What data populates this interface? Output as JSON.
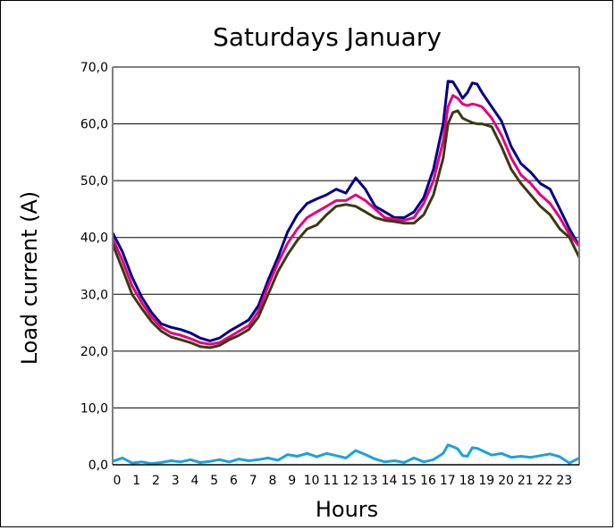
{
  "chart_data": {
    "type": "line",
    "title": "Saturdays January",
    "xlabel": "Hours",
    "ylabel": "Load current  (A)",
    "xlim": [
      0,
      24
    ],
    "ylim": [
      0,
      70
    ],
    "y_ticks": [
      "0,0",
      "10,0",
      "20,0",
      "30,0",
      "40,0",
      "50,0",
      "60,0",
      "70,0"
    ],
    "x_ticks": [
      "0",
      "1",
      "2",
      "3",
      "4",
      "5",
      "6",
      "7",
      "8",
      "9",
      "10",
      "11",
      "12",
      "13",
      "14",
      "15",
      "16",
      "17",
      "18",
      "19",
      "20",
      "21",
      "22",
      "23"
    ],
    "grid": "horizontal",
    "legend": "none",
    "colors": {
      "navy": "#00008B",
      "magenta": "#E6007E",
      "olive": "#3A3A10",
      "cyan": "#1BA1E2",
      "grid": "#000000",
      "plot_border": "#808080"
    },
    "series": [
      {
        "color": "#00008B",
        "x": [
          0,
          0.5,
          1,
          1.5,
          2,
          2.5,
          3,
          3.5,
          4,
          4.5,
          5,
          5.5,
          6,
          6.5,
          7,
          7.5,
          8,
          8.5,
          9,
          9.5,
          10,
          10.5,
          11,
          11.5,
          12,
          12.5,
          13,
          13.5,
          14,
          14.5,
          15,
          15.5,
          16,
          16.5,
          17,
          17.25,
          17.5,
          17.75,
          18,
          18.25,
          18.5,
          18.75,
          19,
          19.5,
          20,
          20.5,
          21,
          21.5,
          22,
          22.5,
          23,
          23.5,
          24
        ],
        "values": [
          40.8,
          37.5,
          33.0,
          29.5,
          26.8,
          24.8,
          24.2,
          23.8,
          23.2,
          22.3,
          21.8,
          22.3,
          23.5,
          24.5,
          25.5,
          28.0,
          32.5,
          36.5,
          41.0,
          44.0,
          46.0,
          46.8,
          47.5,
          48.5,
          47.8,
          50.5,
          48.5,
          45.5,
          44.5,
          43.5,
          43.5,
          44.5,
          47.0,
          52.0,
          60.0,
          67.5,
          67.4,
          66.0,
          64.5,
          65.5,
          67.2,
          67.0,
          65.5,
          63.0,
          60.5,
          56.0,
          53.0,
          51.5,
          49.5,
          48.5,
          45.0,
          41.5,
          38.5
        ]
      },
      {
        "color": "#E6007E",
        "x": [
          0,
          0.5,
          1,
          1.5,
          2,
          2.5,
          3,
          3.5,
          4,
          4.5,
          5,
          5.5,
          6,
          6.5,
          7,
          7.5,
          8,
          8.5,
          9,
          9.5,
          10,
          10.5,
          11,
          11.5,
          12,
          12.5,
          13,
          13.5,
          14,
          14.5,
          15,
          15.5,
          16,
          16.5,
          17,
          17.25,
          17.5,
          17.75,
          18,
          18.25,
          18.5,
          18.75,
          19,
          19.5,
          20,
          20.5,
          21,
          21.5,
          22,
          22.5,
          23,
          23.5,
          24
        ],
        "values": [
          39.8,
          36.0,
          31.5,
          28.5,
          26.0,
          24.2,
          23.2,
          22.8,
          22.2,
          21.5,
          21.2,
          21.5,
          22.5,
          23.5,
          24.5,
          27.0,
          31.5,
          35.5,
          39.0,
          41.5,
          43.5,
          44.5,
          45.5,
          46.5,
          46.5,
          47.5,
          46.5,
          45.0,
          43.5,
          43.2,
          43.0,
          43.5,
          46.0,
          50.0,
          57.0,
          63.0,
          65.0,
          64.5,
          63.5,
          63.2,
          63.5,
          63.3,
          63.0,
          61.0,
          58.0,
          54.0,
          51.0,
          49.5,
          47.5,
          46.0,
          43.5,
          40.5,
          38.5
        ]
      },
      {
        "color": "#3A3A10",
        "x": [
          0,
          0.5,
          1,
          1.5,
          2,
          2.5,
          3,
          3.5,
          4,
          4.5,
          5,
          5.5,
          6,
          6.5,
          7,
          7.5,
          8,
          8.5,
          9,
          9.5,
          10,
          10.5,
          11,
          11.5,
          12,
          12.5,
          13,
          13.5,
          14,
          14.5,
          15,
          15.5,
          16,
          16.5,
          17,
          17.25,
          17.5,
          17.75,
          18,
          18.25,
          18.5,
          18.75,
          19,
          19.5,
          20,
          20.5,
          21,
          21.5,
          22,
          22.5,
          23,
          23.5,
          24
        ],
        "values": [
          38.8,
          34.5,
          30.0,
          27.5,
          25.2,
          23.5,
          22.5,
          22.0,
          21.5,
          20.8,
          20.6,
          21.0,
          22.0,
          22.8,
          23.8,
          26.0,
          30.0,
          34.0,
          37.0,
          39.5,
          41.5,
          42.2,
          44.0,
          45.5,
          45.8,
          45.5,
          44.5,
          43.5,
          43.0,
          42.8,
          42.5,
          42.5,
          44.0,
          47.5,
          54.0,
          60.0,
          62.0,
          62.3,
          61.0,
          60.6,
          60.2,
          60.0,
          60.0,
          59.5,
          56.0,
          52.0,
          49.5,
          47.5,
          45.5,
          44.0,
          41.5,
          40.0,
          36.5
        ]
      },
      {
        "color": "#1BA1E2",
        "x": [
          0,
          0.5,
          1,
          1.5,
          2,
          2.5,
          3,
          3.5,
          4,
          4.5,
          5,
          5.5,
          6,
          6.5,
          7,
          7.5,
          8,
          8.5,
          9,
          9.5,
          10,
          10.5,
          11,
          11.5,
          12,
          12.5,
          13,
          13.5,
          14,
          14.5,
          15,
          15.5,
          16,
          16.5,
          17,
          17.25,
          17.5,
          17.75,
          18,
          18.25,
          18.5,
          18.75,
          19,
          19.5,
          20,
          20.5,
          21,
          21.5,
          22,
          22.5,
          23,
          23.5,
          24
        ],
        "values": [
          0.6,
          1.2,
          0.3,
          0.5,
          0.2,
          0.4,
          0.7,
          0.5,
          0.9,
          0.4,
          0.6,
          0.9,
          0.5,
          1.0,
          0.7,
          0.9,
          1.2,
          0.8,
          1.8,
          1.5,
          2.0,
          1.4,
          2.0,
          1.6,
          1.2,
          2.5,
          1.8,
          1.0,
          0.5,
          0.7,
          0.4,
          1.2,
          0.5,
          0.9,
          2.0,
          3.5,
          3.2,
          2.8,
          1.6,
          1.5,
          3.0,
          2.9,
          2.5,
          1.7,
          2.0,
          1.3,
          1.5,
          1.3,
          1.6,
          1.9,
          1.4,
          0.3,
          1.2
        ]
      }
    ]
  }
}
